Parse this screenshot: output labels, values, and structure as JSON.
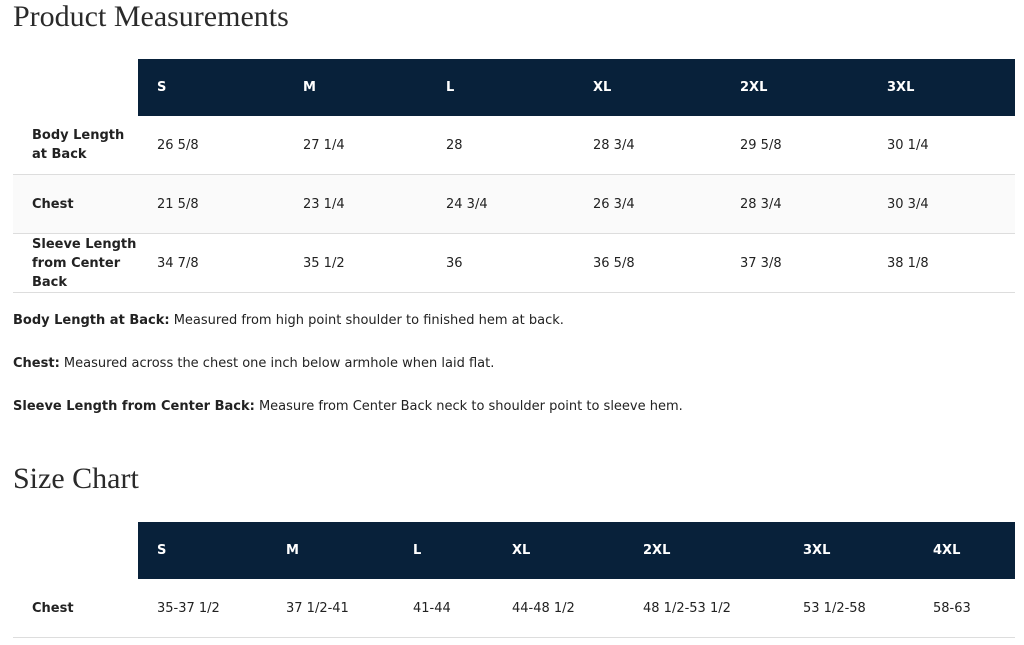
{
  "measurements": {
    "title": "Product Measurements",
    "header": [
      "S",
      "M",
      "L",
      "XL",
      "2XL",
      "3XL"
    ],
    "rows": [
      {
        "label": "Body Length at Back",
        "values": [
          "26 5/8",
          "27 1/4",
          "28",
          "28 3/4",
          "29 5/8",
          "30 1/4"
        ]
      },
      {
        "label": "Chest",
        "values": [
          "21 5/8",
          "23 1/4",
          "24 3/4",
          "26 3/4",
          "28 3/4",
          "30 3/4"
        ]
      },
      {
        "label": "Sleeve Length from Center Back",
        "values": [
          "34 7/8",
          "35 1/2",
          "36",
          "36 5/8",
          "37 3/8",
          "38 1/8"
        ]
      }
    ]
  },
  "notes": [
    {
      "term": "Body Length at Back:",
      "text": "Measured from high point shoulder to finished hem at back."
    },
    {
      "term": "Chest:",
      "text": "Measured across the chest one inch below armhole when laid flat."
    },
    {
      "term": "Sleeve Length from Center Back:",
      "text": "Measure from Center Back neck to shoulder point to sleeve hem."
    }
  ],
  "size_chart": {
    "title": "Size Chart",
    "header": [
      "S",
      "M",
      "L",
      "XL",
      "2XL",
      "3XL",
      "4XL"
    ],
    "rows": [
      {
        "label": "Chest",
        "values": [
          "35-37 1/2",
          "37 1/2-41",
          "41-44",
          "44-48 1/2",
          "48 1/2-53 1/2",
          "53 1/2-58",
          "58-63"
        ]
      }
    ]
  }
}
